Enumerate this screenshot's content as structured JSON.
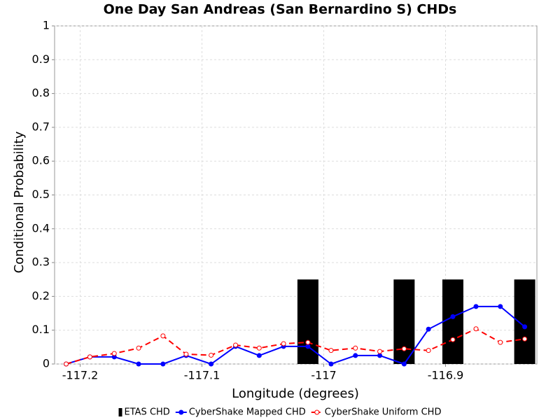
{
  "chart_data": {
    "type": "line",
    "title": "One Day San Andreas (San Bernardino S) CHDs",
    "x_label": "Longitude (degrees)",
    "y_label": "Conditional Probability",
    "xlim": [
      -117.221,
      -116.825
    ],
    "ylim": [
      0,
      1
    ],
    "xticks": [
      -117.2,
      -117.1,
      -117,
      -116.9
    ],
    "yticks": [
      0,
      0.1,
      0.2,
      0.3,
      0.4,
      0.5,
      0.6,
      0.7,
      0.8,
      0.9,
      1
    ],
    "grid": true,
    "legend": "bottom",
    "series": [
      {
        "name": "ETAS CHD",
        "type": "bar",
        "color": "#000000",
        "x": [
          -117.013,
          -116.934,
          -116.894,
          -116.835
        ],
        "values": [
          0.25,
          0.25,
          0.25,
          0.25
        ]
      },
      {
        "name": "CyberShake Mapped CHD",
        "type": "line",
        "color": "#0000ff",
        "marker": "filled",
        "dashed": false,
        "x": [
          -117.2115,
          -117.192,
          -117.172,
          -117.152,
          -117.132,
          -117.113,
          -117.0925,
          -117.0724,
          -117.053,
          -117.033,
          -117.013,
          -116.994,
          -116.974,
          -116.954,
          -116.934,
          -116.914,
          -116.894,
          -116.875,
          -116.855,
          -116.835
        ],
        "values": [
          0,
          0.021,
          0.021,
          0,
          0,
          0.025,
          0,
          0.052,
          0.025,
          0.052,
          0.052,
          0,
          0.025,
          0.025,
          0,
          0.103,
          0.14,
          0.17,
          0.17,
          0.11
        ]
      },
      {
        "name": "CyberShake Uniform CHD",
        "type": "line",
        "color": "#ff0000",
        "marker": "open",
        "dashed": true,
        "x": [
          -117.2115,
          -117.192,
          -117.172,
          -117.152,
          -117.132,
          -117.113,
          -117.0925,
          -117.0724,
          -117.053,
          -117.033,
          -117.013,
          -116.994,
          -116.974,
          -116.954,
          -116.934,
          -116.914,
          -116.894,
          -116.875,
          -116.855,
          -116.835
        ],
        "values": [
          0,
          0.021,
          0.031,
          0.047,
          0.083,
          0.029,
          0.026,
          0.056,
          0.047,
          0.06,
          0.064,
          0.04,
          0.047,
          0.037,
          0.045,
          0.04,
          0.072,
          0.104,
          0.064,
          0.074
        ]
      }
    ]
  }
}
